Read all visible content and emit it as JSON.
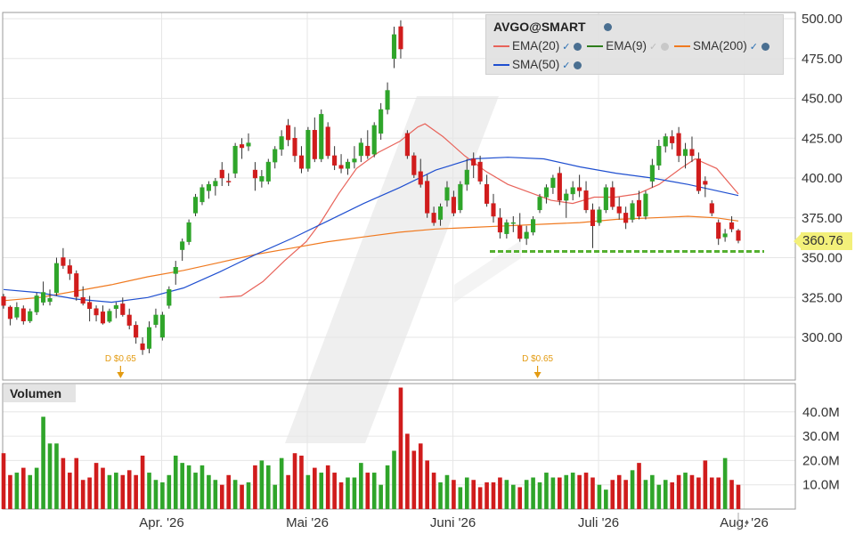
{
  "chart_title": "AVGO@SMART",
  "legend": [
    {
      "label": "EMA(20)",
      "color": "#e8635a",
      "icon": "eye-icon"
    },
    {
      "label": "EMA(9)",
      "color": "#2e7d1c",
      "icon": "eye-icon"
    },
    {
      "label": "SMA(200)",
      "color": "#f07a20",
      "icon": "eye-icon"
    },
    {
      "label": "SMA(50)",
      "color": "#1f4fd0",
      "icon": "eye-icon"
    }
  ],
  "last_price_label": "360.76",
  "volume_label": "Volumen",
  "chart_data": [
    {
      "type": "candlestick",
      "title": "AVGO@SMART",
      "yticks": [
        "500.00",
        "475.00",
        "450.00",
        "425.00",
        "400.00",
        "375.00",
        "350.00",
        "325.00",
        "300.00"
      ],
      "ylim": [
        278,
        506
      ],
      "xlabels": [
        "Apr. '26",
        "Mai '26",
        "Juni '26",
        "Juli '26",
        "Aug. '26"
      ],
      "xlabel_indices": [
        22,
        44,
        66,
        88,
        110
      ],
      "grid": true,
      "up_color": "#2fa52a",
      "down_color": "#d01c1c",
      "support_level": 355,
      "support_color": "#55b030",
      "last_price": 360.76,
      "dividends": [
        {
          "label": "D $0.65",
          "index": 17
        },
        {
          "label": "D $0.65",
          "index": 80
        }
      ],
      "candles": [
        [
          325.5,
          327.2,
          318.0,
          320.0
        ],
        [
          319.0,
          320.0,
          307.5,
          311.7
        ],
        [
          312.6,
          322.0,
          311.0,
          318.8
        ],
        [
          318.0,
          320.0,
          308.0,
          310.2
        ],
        [
          310.3,
          318.0,
          309.0,
          316.2
        ],
        [
          315.9,
          328.0,
          314.0,
          326.0
        ],
        [
          322.0,
          335.0,
          320.0,
          328.2
        ],
        [
          322.4,
          330.0,
          320.0,
          324.4
        ],
        [
          328.0,
          350.0,
          326.0,
          346.4
        ],
        [
          350.0,
          356.0,
          343.0,
          345.0
        ],
        [
          345.0,
          349.0,
          336.0,
          340.0
        ],
        [
          340.0,
          342.0,
          323.0,
          325.5
        ],
        [
          325.0,
          332.0,
          320.0,
          321.3
        ],
        [
          322.0,
          326.0,
          310.0,
          318.0
        ],
        [
          318.0,
          320.0,
          310.0,
          314.0
        ],
        [
          316.0,
          320.0,
          308.0,
          308.9
        ],
        [
          310.0,
          318.0,
          309.0,
          316.4
        ],
        [
          318.0,
          322.0,
          312.0,
          320.0
        ],
        [
          321.0,
          325.0,
          313.0,
          314.2
        ],
        [
          314.0,
          318.0,
          305.0,
          307.5
        ],
        [
          307.6,
          310.0,
          296.0,
          300.0
        ],
        [
          296.0,
          300.0,
          289.0,
          292.2
        ],
        [
          293.0,
          310.0,
          290.0,
          306.2
        ],
        [
          308.0,
          318.0,
          306.0,
          314.0
        ],
        [
          300.0,
          316.0,
          298.0,
          314.0
        ],
        [
          320.0,
          332.0,
          318.0,
          330.0
        ],
        [
          340.0,
          348.0,
          333.0,
          344.0
        ],
        [
          355.0,
          362.0,
          348.0,
          360.0
        ],
        [
          360.0,
          374.0,
          358.0,
          372.0
        ],
        [
          378.0,
          390.0,
          376.0,
          388.0
        ],
        [
          385.0,
          396.0,
          383.0,
          394.0
        ],
        [
          392.0,
          398.0,
          387.0,
          396.0
        ],
        [
          395.0,
          400.0,
          389.0,
          398.0
        ],
        [
          405.0,
          410.0,
          395.0,
          400.0
        ],
        [
          398.0,
          403.0,
          395.0,
          397.6
        ],
        [
          403.0,
          422.0,
          400.0,
          420.0
        ],
        [
          421.0,
          425.0,
          412.0,
          419.0
        ],
        [
          420.0,
          428.0,
          417.0,
          422.0
        ],
        [
          405.0,
          410.0,
          392.0,
          400.0
        ],
        [
          398.0,
          405.0,
          394.0,
          401.0
        ],
        [
          398.0,
          412.0,
          396.0,
          410.0
        ],
        [
          410.0,
          420.0,
          406.0,
          418.0
        ],
        [
          418.0,
          430.0,
          414.0,
          426.0
        ],
        [
          433.0,
          437.0,
          420.0,
          424.0
        ],
        [
          425.0,
          432.0,
          410.0,
          414.0
        ],
        [
          414.0,
          420.0,
          403.0,
          406.0
        ],
        [
          406.0,
          432.0,
          404.0,
          430.0
        ],
        [
          430.0,
          438.0,
          410.0,
          412.0
        ],
        [
          412.0,
          443.0,
          410.0,
          440.0
        ],
        [
          432.0,
          435.0,
          412.0,
          414.0
        ],
        [
          414.0,
          420.0,
          405.0,
          408.0
        ],
        [
          408.0,
          415.0,
          403.0,
          406.0
        ],
        [
          406.0,
          412.0,
          402.0,
          410.0
        ],
        [
          410.0,
          420.0,
          406.0,
          412.0
        ],
        [
          414.0,
          425.0,
          410.0,
          422.0
        ],
        [
          420.0,
          430.0,
          412.0,
          414.0
        ],
        [
          415.0,
          435.0,
          413.0,
          433.0
        ],
        [
          428.0,
          447.0,
          424.0,
          443.0
        ],
        [
          443.0,
          460.0,
          440.0,
          455.0
        ],
        [
          475.0,
          495.0,
          469.0,
          490.0
        ],
        [
          495.0,
          499.0,
          475.0,
          481.0
        ],
        [
          428.0,
          430.0,
          412.0,
          414.0
        ],
        [
          414.0,
          416.0,
          400.0,
          402.0
        ],
        [
          404.0,
          412.0,
          394.0,
          396.0
        ],
        [
          398.0,
          402.0,
          375.0,
          378.0
        ],
        [
          378.0,
          382.0,
          370.0,
          372.0
        ],
        [
          374.0,
          384.0,
          370.0,
          382.0
        ],
        [
          386.0,
          398.0,
          382.0,
          394.0
        ],
        [
          388.0,
          392.0,
          376.0,
          378.0
        ],
        [
          380.0,
          398.0,
          378.0,
          396.0
        ],
        [
          396.0,
          412.0,
          392.0,
          405.0
        ],
        [
          412.0,
          416.0,
          400.0,
          408.0
        ],
        [
          410.0,
          414.0,
          396.0,
          398.0
        ],
        [
          396.0,
          402.0,
          382.0,
          384.0
        ],
        [
          384.0,
          390.0,
          372.0,
          376.0
        ],
        [
          375.0,
          381.0,
          362.0,
          366.0
        ],
        [
          365.0,
          374.0,
          362.0,
          372.0
        ],
        [
          372.0,
          376.0,
          366.0,
          372.0
        ],
        [
          370.0,
          378.0,
          360.0,
          362.0
        ],
        [
          362.0,
          370.0,
          358.0,
          366.0
        ],
        [
          366.0,
          376.0,
          364.0,
          374.0
        ],
        [
          380.0,
          390.0,
          378.0,
          388.0
        ],
        [
          388.0,
          396.0,
          384.0,
          394.0
        ],
        [
          394.0,
          402.0,
          390.0,
          400.0
        ],
        [
          403.0,
          407.0,
          383.0,
          386.0
        ],
        [
          386.0,
          393.0,
          375.0,
          390.0
        ],
        [
          390.0,
          398.0,
          386.0,
          394.0
        ],
        [
          394.0,
          402.0,
          388.0,
          392.0
        ],
        [
          392.0,
          398.0,
          378.0,
          380.0
        ],
        [
          380.0,
          384.0,
          356.0,
          370.0
        ],
        [
          372.0,
          382.0,
          370.0,
          380.0
        ],
        [
          380.0,
          396.0,
          378.0,
          394.0
        ],
        [
          394.0,
          398.0,
          380.0,
          382.0
        ],
        [
          382.0,
          388.0,
          374.0,
          378.0
        ],
        [
          378.0,
          382.0,
          368.0,
          372.0
        ],
        [
          374.0,
          386.0,
          372.0,
          384.0
        ],
        [
          386.0,
          392.0,
          374.0,
          376.0
        ],
        [
          376.0,
          392.0,
          374.0,
          390.0
        ],
        [
          398.0,
          412.0,
          394.0,
          408.0
        ],
        [
          408.0,
          424.0,
          405.0,
          420.0
        ],
        [
          420.0,
          428.0,
          416.0,
          426.0
        ],
        [
          426.0,
          430.0,
          418.0,
          422.0
        ],
        [
          428.0,
          432.0,
          410.0,
          414.0
        ],
        [
          414.0,
          422.0,
          406.0,
          418.0
        ],
        [
          418.0,
          426.0,
          410.0,
          414.0
        ],
        [
          412.0,
          416.0,
          390.0,
          392.0
        ],
        [
          398.0,
          401.0,
          388.0,
          396.0
        ],
        [
          384.0,
          386.0,
          376.0,
          378.0
        ],
        [
          372.0,
          374.0,
          358.0,
          362.0
        ],
        [
          363.0,
          368.0,
          360.0,
          365.0
        ],
        [
          372.0,
          376.0,
          366.0,
          368.0
        ],
        [
          367.0,
          368.0,
          359.0,
          360.76
        ]
      ],
      "overlays": [
        {
          "name": "EMA(20)",
          "color": "#e8635a",
          "points": [
            [
              60,
              325
            ],
            [
              66,
              326
            ],
            [
              72,
              335
            ],
            [
              78,
              348
            ],
            [
              84,
              360
            ],
            [
              88,
              372
            ],
            [
              93,
              390
            ],
            [
              98,
              406
            ],
            [
              104,
              416
            ],
            [
              110,
              423
            ],
            [
              115,
              432
            ],
            [
              117,
              434
            ],
            [
              122,
              426
            ],
            [
              128,
              414
            ],
            [
              134,
              404
            ],
            [
              140,
              396
            ],
            [
              146,
              391
            ],
            [
              152,
              386
            ],
            [
              158,
              384
            ],
            [
              164,
              388
            ],
            [
              170,
              388
            ],
            [
              176,
              390
            ],
            [
              182,
              396
            ],
            [
              188,
              406
            ],
            [
              192,
              412
            ],
            [
              198,
              406
            ],
            [
              204,
              390
            ]
          ]
        },
        {
          "name": "SMA(200)",
          "color": "#f07a20",
          "points": [
            [
              0,
              323
            ],
            [
              10,
              325
            ],
            [
              20,
              329
            ],
            [
              30,
              333
            ],
            [
              40,
              338
            ],
            [
              50,
              342
            ],
            [
              60,
              347
            ],
            [
              70,
              352
            ],
            [
              80,
              356
            ],
            [
              90,
              360
            ],
            [
              100,
              363
            ],
            [
              110,
              366
            ],
            [
              120,
              368
            ],
            [
              130,
              369
            ],
            [
              140,
              370
            ],
            [
              150,
              371
            ],
            [
              160,
              372
            ],
            [
              170,
              374
            ],
            [
              180,
              375
            ],
            [
              190,
              376
            ],
            [
              198,
              375
            ],
            [
              204,
              373
            ]
          ]
        },
        {
          "name": "SMA(50)",
          "color": "#1f4fd0",
          "points": [
            [
              0,
              330
            ],
            [
              10,
              328
            ],
            [
              20,
              324
            ],
            [
              30,
              322
            ],
            [
              40,
              325
            ],
            [
              50,
              331
            ],
            [
              60,
              341
            ],
            [
              70,
              352
            ],
            [
              80,
              362
            ],
            [
              90,
              373
            ],
            [
              100,
              384
            ],
            [
              110,
              394
            ],
            [
              120,
              405
            ],
            [
              130,
              412
            ],
            [
              140,
              413
            ],
            [
              150,
              412
            ],
            [
              160,
              407
            ],
            [
              170,
              403
            ],
            [
              180,
              400
            ],
            [
              190,
              396
            ],
            [
              198,
              392
            ],
            [
              204,
              389
            ]
          ]
        }
      ]
    },
    {
      "type": "bar",
      "title": "Volumen",
      "yticks": [
        "40.0M",
        "30.0M",
        "20.0M",
        "10.0M"
      ],
      "ylim": [
        0,
        48
      ],
      "volumes": [
        23,
        14,
        15,
        17,
        14,
        17,
        38,
        27,
        27,
        21,
        15,
        21,
        12,
        13,
        19,
        17,
        14,
        15,
        14,
        16,
        14,
        22,
        15,
        12,
        11,
        14,
        22,
        19,
        18,
        15,
        18,
        14,
        12,
        10,
        14,
        12,
        10,
        11,
        18,
        20,
        18,
        10,
        21,
        14,
        23,
        22,
        14,
        17,
        15,
        18,
        15,
        11,
        13,
        13,
        19,
        15,
        15,
        10,
        18,
        24,
        50,
        31,
        24,
        27,
        20,
        15,
        11,
        14,
        12,
        9,
        13,
        12,
        9,
        11,
        11,
        13,
        12,
        10,
        9,
        12,
        13,
        11,
        15,
        13,
        13,
        14,
        15,
        14,
        15,
        13,
        10,
        8,
        12,
        14,
        12,
        16,
        19,
        12,
        14,
        10,
        12,
        11,
        14,
        15,
        14,
        13,
        20,
        13,
        13,
        21,
        12,
        10
      ]
    }
  ]
}
